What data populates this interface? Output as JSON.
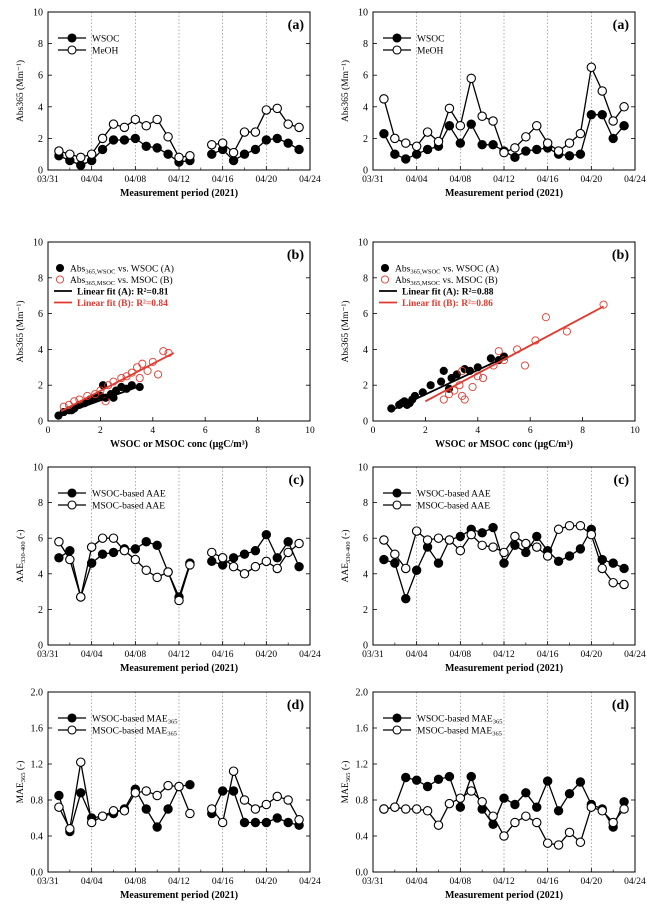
{
  "chart_data": [
    {
      "type": "line",
      "id": "a_left",
      "tag": "(a)",
      "ylabel": "Abs365",
      "ylabel_sub": "",
      "ylabel_unit": "(Mm⁻¹)",
      "xlabel": "Measurement period (2021)",
      "x_ticks": [
        "03/31",
        "04/04",
        "04/08",
        "04/12",
        "04/16",
        "04/20",
        "04/24"
      ],
      "ylim": [
        0,
        10
      ],
      "y_ticks": [
        "0",
        "2",
        "4",
        "6",
        "8",
        "10"
      ],
      "legend": [
        "WSOC",
        "MeOH"
      ],
      "series": [
        {
          "name": "WSOC",
          "marker": "filled",
          "x": [
            1,
            2,
            3,
            4,
            5,
            6,
            7,
            8,
            9,
            10,
            11,
            12,
            13,
            15,
            16,
            17,
            18,
            19,
            20,
            21,
            22,
            23
          ],
          "y": [
            0.9,
            0.6,
            0.3,
            0.6,
            1.3,
            1.9,
            1.9,
            2.0,
            1.5,
            1.4,
            1.0,
            0.5,
            0.6,
            1.0,
            1.3,
            0.6,
            1.0,
            1.3,
            1.9,
            2.0,
            1.7,
            1.3
          ]
        },
        {
          "name": "MeOH",
          "marker": "open",
          "x": [
            1,
            2,
            3,
            4,
            5,
            6,
            7,
            8,
            9,
            10,
            11,
            12,
            13,
            15,
            16,
            17,
            18,
            19,
            20,
            21,
            22,
            23
          ],
          "y": [
            1.2,
            1.0,
            0.8,
            1.0,
            2.0,
            2.9,
            2.7,
            3.2,
            2.8,
            3.2,
            2.1,
            0.8,
            0.9,
            1.6,
            1.7,
            1.1,
            2.4,
            2.4,
            3.8,
            3.9,
            2.9,
            2.7
          ]
        }
      ]
    },
    {
      "type": "line",
      "id": "a_right",
      "tag": "(a)",
      "ylabel": "Abs365",
      "ylabel_sub": "",
      "ylabel_unit": "(Mm⁻¹)",
      "xlabel": "Measurement period (2021)",
      "x_ticks": [
        "03/31",
        "04/04",
        "04/08",
        "04/12",
        "04/16",
        "04/20",
        "04/24"
      ],
      "ylim": [
        0,
        10
      ],
      "y_ticks": [
        "0",
        "2",
        "4",
        "6",
        "8",
        "10"
      ],
      "legend": [
        "WSOC",
        "MeOH"
      ],
      "series": [
        {
          "name": "WSOC",
          "marker": "filled",
          "x": [
            1,
            2,
            3,
            4,
            5,
            6,
            7,
            8,
            9,
            10,
            11,
            12,
            13,
            14,
            15,
            16,
            17,
            18,
            19,
            20,
            21,
            22,
            23
          ],
          "y": [
            2.3,
            1.0,
            0.7,
            1.0,
            1.3,
            1.5,
            2.8,
            1.7,
            2.9,
            1.6,
            1.6,
            1.2,
            0.8,
            1.2,
            1.3,
            1.4,
            1.0,
            0.9,
            1.0,
            3.5,
            3.5,
            2.0,
            2.8
          ]
        },
        {
          "name": "MeOH",
          "marker": "open",
          "x": [
            1,
            2,
            3,
            4,
            5,
            6,
            7,
            8,
            9,
            10,
            11,
            12,
            13,
            14,
            15,
            16,
            17,
            18,
            19,
            20,
            21,
            22,
            23
          ],
          "y": [
            4.5,
            2.0,
            1.7,
            1.5,
            2.4,
            1.8,
            3.9,
            2.8,
            5.8,
            3.4,
            3.1,
            1.1,
            1.4,
            2.1,
            2.8,
            1.7,
            1.2,
            1.7,
            2.3,
            6.5,
            5.0,
            3.1,
            4.0
          ]
        }
      ]
    },
    {
      "type": "scatter",
      "id": "b_left",
      "tag": "(b)",
      "ylabel": "Abs365",
      "ylabel_sub": "",
      "ylabel_unit": "(Mm⁻¹)",
      "xlabel": "WSOC or MSOC conc (μgC/m³)",
      "xlim": [
        0,
        10
      ],
      "x_ticks": [
        "0",
        "2",
        "4",
        "6",
        "8",
        "10"
      ],
      "ylim": [
        0,
        10
      ],
      "y_ticks": [
        "0",
        "2",
        "4",
        "6",
        "8",
        "10"
      ],
      "legend": [
        "Abs365,WSOC vs. WSOC (A)",
        "Abs365,MSOC vs. MSOC (B)",
        "Linear fit (A): R²=0.81",
        "Linear fit (B): R²=0.84"
      ],
      "series": [
        {
          "name": "Abs365,WSOC vs. WSOC (A)",
          "marker": "filled",
          "x": [
            0.4,
            0.6,
            0.8,
            1.0,
            1.2,
            1.4,
            1.6,
            1.8,
            2.0,
            2.2,
            2.4,
            2.6,
            2.8,
            3.0,
            3.2,
            3.5,
            0.9,
            1.7,
            2.1,
            2.5
          ],
          "y": [
            0.3,
            0.5,
            0.6,
            0.7,
            0.9,
            1.0,
            1.2,
            1.3,
            1.4,
            1.3,
            1.5,
            1.7,
            1.9,
            1.8,
            2.0,
            1.9,
            0.6,
            1.2,
            2.0,
            1.3
          ]
        },
        {
          "name": "Abs365,MSOC vs. MSOC (B)",
          "marker": "open-red",
          "x": [
            0.6,
            0.8,
            1.0,
            1.2,
            1.5,
            1.8,
            2.0,
            2.3,
            2.5,
            2.8,
            3.0,
            3.2,
            3.4,
            3.6,
            3.8,
            4.0,
            4.2,
            4.4,
            4.6,
            3.5,
            2.2
          ],
          "y": [
            0.8,
            0.9,
            1.1,
            1.2,
            1.4,
            1.5,
            1.7,
            2.0,
            2.2,
            2.4,
            2.5,
            2.7,
            3.0,
            3.2,
            2.8,
            3.3,
            2.6,
            3.9,
            3.8,
            2.4,
            1.1
          ]
        }
      ],
      "fits": [
        {
          "name": "Linear fit (A)",
          "color": "#000000",
          "x": [
            0.3,
            3.6
          ],
          "y": [
            0.25,
            2.0
          ]
        },
        {
          "name": "Linear fit (B)",
          "color": "#e03a2f",
          "x": [
            0.5,
            4.8
          ],
          "y": [
            0.55,
            3.8
          ]
        }
      ]
    },
    {
      "type": "scatter",
      "id": "b_right",
      "tag": "(b)",
      "ylabel": "Abs365",
      "ylabel_sub": "",
      "ylabel_unit": "(Mm⁻¹)",
      "xlabel": "WSOC or MSOC conc (μgC/m³)",
      "xlim": [
        0,
        10
      ],
      "x_ticks": [
        "0",
        "2",
        "4",
        "6",
        "8",
        "10"
      ],
      "ylim": [
        0,
        10
      ],
      "y_ticks": [
        "0",
        "2",
        "4",
        "6",
        "8",
        "10"
      ],
      "legend": [
        "Abs365,WSOC vs. WSOC (A)",
        "Abs365,MSOC vs. MSOC (B)",
        "Linear fit (A): R²=0.88",
        "Linear fit (B): R²=0.86"
      ],
      "series": [
        {
          "name": "Abs365,WSOC vs. WSOC (A)",
          "marker": "filled",
          "x": [
            0.7,
            1.0,
            1.1,
            1.2,
            1.3,
            1.5,
            1.6,
            1.9,
            2.2,
            2.6,
            2.9,
            3.0,
            3.2,
            3.5,
            3.7,
            4.0,
            4.5,
            4.8,
            5.0,
            1.4,
            2.7
          ],
          "y": [
            0.7,
            0.9,
            1.0,
            1.1,
            0.9,
            1.2,
            1.4,
            1.6,
            2.0,
            2.2,
            1.8,
            2.4,
            2.6,
            2.9,
            2.8,
            3.0,
            3.5,
            3.4,
            3.6,
            1.0,
            2.8
          ]
        },
        {
          "name": "Abs365,MSOC vs. MSOC (B)",
          "marker": "open-red",
          "x": [
            2.7,
            2.9,
            3.1,
            3.3,
            3.4,
            3.5,
            3.8,
            4.0,
            4.2,
            4.6,
            5.0,
            5.5,
            5.8,
            6.2,
            6.6,
            7.4,
            8.8,
            3.4,
            4.8
          ],
          "y": [
            1.2,
            1.5,
            1.7,
            2.0,
            1.4,
            1.2,
            1.9,
            2.5,
            2.4,
            3.1,
            3.4,
            4.0,
            3.1,
            4.5,
            5.8,
            5.0,
            6.5,
            2.8,
            3.9
          ]
        }
      ],
      "fits": [
        {
          "name": "Linear fit (A)",
          "color": "#000000",
          "x": [
            0.7,
            5.1
          ],
          "y": [
            0.6,
            3.6
          ]
        },
        {
          "name": "Linear fit (B)",
          "color": "#e03a2f",
          "x": [
            2.0,
            8.8
          ],
          "y": [
            1.1,
            6.4
          ]
        }
      ]
    },
    {
      "type": "line",
      "id": "c_left",
      "tag": "(c)",
      "ylabel": "AAE",
      "ylabel_sub": "330-400",
      "ylabel_unit": "(-)",
      "xlabel": "Measurement period (2021)",
      "x_ticks": [
        "03/31",
        "04/04",
        "04/08",
        "04/12",
        "04/16",
        "04/20",
        "04/24"
      ],
      "ylim": [
        0,
        10
      ],
      "y_ticks": [
        "0",
        "2",
        "4",
        "6",
        "8",
        "10"
      ],
      "legend": [
        "WSOC-based AAE",
        "MSOC-based AAE"
      ],
      "series": [
        {
          "name": "WSOC-based AAE",
          "marker": "filled",
          "x": [
            1,
            2,
            3,
            4,
            5,
            6,
            7,
            8,
            9,
            10,
            11,
            12,
            13,
            15,
            16,
            17,
            18,
            19,
            20,
            21,
            22,
            23
          ],
          "y": [
            4.9,
            5.3,
            2.7,
            4.6,
            5.1,
            5.2,
            5.4,
            5.4,
            5.8,
            5.6,
            4.1,
            2.7,
            4.6,
            4.7,
            4.5,
            4.9,
            5.1,
            5.3,
            6.2,
            4.9,
            5.8,
            4.4
          ]
        },
        {
          "name": "MSOC-based AAE",
          "marker": "open",
          "x": [
            1,
            2,
            3,
            4,
            5,
            6,
            7,
            8,
            9,
            10,
            11,
            12,
            13,
            15,
            16,
            17,
            18,
            19,
            20,
            21,
            22,
            23
          ],
          "y": [
            5.8,
            4.8,
            2.7,
            5.5,
            6.0,
            6.0,
            5.3,
            4.8,
            4.2,
            3.8,
            4.1,
            2.5,
            4.5,
            5.2,
            4.9,
            4.4,
            4.0,
            4.4,
            4.7,
            4.3,
            5.2,
            5.7
          ]
        }
      ]
    },
    {
      "type": "line",
      "id": "c_right",
      "tag": "(c)",
      "ylabel": "AAE",
      "ylabel_sub": "330-400",
      "ylabel_unit": "(-)",
      "xlabel": "Measurement period (2021)",
      "x_ticks": [
        "03/31",
        "04/04",
        "04/08",
        "04/12",
        "04/16",
        "04/20",
        "04/24"
      ],
      "ylim": [
        0,
        10
      ],
      "y_ticks": [
        "0",
        "2",
        "4",
        "6",
        "8",
        "10"
      ],
      "legend": [
        "WSOC-based AAE",
        "MSOC-based AAE"
      ],
      "series": [
        {
          "name": "WSOC-based AAE",
          "marker": "filled",
          "x": [
            1,
            2,
            3,
            4,
            5,
            6,
            7,
            8,
            9,
            10,
            11,
            12,
            13,
            14,
            15,
            16,
            17,
            18,
            19,
            20,
            21,
            22,
            23
          ],
          "y": [
            4.8,
            4.6,
            2.6,
            4.2,
            5.5,
            4.6,
            5.9,
            6.1,
            6.5,
            6.3,
            6.6,
            4.6,
            5.6,
            5.2,
            6.1,
            5.3,
            4.7,
            5.0,
            5.4,
            6.5,
            4.8,
            4.6,
            4.3
          ]
        },
        {
          "name": "MSOC-based AAE",
          "marker": "open",
          "x": [
            1,
            2,
            3,
            4,
            5,
            6,
            7,
            8,
            9,
            10,
            11,
            12,
            13,
            14,
            15,
            16,
            17,
            18,
            19,
            20,
            21,
            22,
            23
          ],
          "y": [
            5.9,
            5.1,
            4.3,
            6.4,
            5.9,
            6.0,
            5.9,
            5.3,
            6.2,
            5.6,
            5.5,
            5.2,
            6.1,
            5.7,
            5.5,
            5.0,
            6.5,
            6.7,
            6.7,
            6.2,
            4.3,
            3.5,
            3.4
          ]
        }
      ]
    },
    {
      "type": "line",
      "id": "d_left",
      "tag": "(d)",
      "ylabel": "MAE",
      "ylabel_sub": "365",
      "ylabel_unit": "(-)",
      "xlabel": "Measurement period (2021)",
      "x_ticks": [
        "03/31",
        "04/04",
        "04/08",
        "04/12",
        "04/16",
        "04/20",
        "04/24"
      ],
      "ylim": [
        0,
        2.0
      ],
      "y_ticks": [
        "0.0",
        "0.4",
        "0.8",
        "1.2",
        "1.6",
        "2.0"
      ],
      "legend": [
        "WSOC-based MAE365",
        "MSOC-based MAE365"
      ],
      "series": [
        {
          "name": "WSOC-based MAE365",
          "marker": "filled",
          "x": [
            1,
            2,
            3,
            4,
            5,
            6,
            7,
            8,
            9,
            10,
            11,
            12,
            13,
            15,
            16,
            17,
            18,
            19,
            20,
            21,
            22,
            23
          ],
          "y": [
            0.85,
            0.45,
            0.88,
            0.6,
            0.62,
            0.65,
            0.7,
            0.92,
            0.7,
            0.5,
            0.7,
            0.95,
            0.97,
            0.65,
            0.9,
            0.9,
            0.55,
            0.55,
            0.55,
            0.6,
            0.55,
            0.52
          ]
        },
        {
          "name": "MSOC-based MAE365",
          "marker": "open",
          "x": [
            1,
            2,
            3,
            4,
            5,
            6,
            7,
            8,
            9,
            10,
            11,
            12,
            13,
            15,
            16,
            17,
            18,
            19,
            20,
            21,
            22,
            23
          ],
          "y": [
            0.72,
            0.48,
            1.22,
            0.55,
            0.62,
            0.68,
            0.68,
            0.88,
            0.9,
            0.85,
            0.96,
            0.95,
            0.65,
            0.7,
            0.55,
            1.12,
            0.8,
            0.7,
            0.75,
            0.84,
            0.8,
            0.58
          ]
        }
      ]
    },
    {
      "type": "line",
      "id": "d_right",
      "tag": "(d)",
      "ylabel": "MAE",
      "ylabel_sub": "365",
      "ylabel_unit": "(-)",
      "xlabel": "Measurement period (2021)",
      "x_ticks": [
        "03/31",
        "04/04",
        "04/08",
        "04/12",
        "04/16",
        "04/20",
        "04/24"
      ],
      "ylim": [
        0,
        2.0
      ],
      "y_ticks": [
        "0.0",
        "0.4",
        "0.8",
        "1.2",
        "1.6",
        "2.0"
      ],
      "legend": [
        "WSOC-based MAE365",
        "MSOC-based MAE365"
      ],
      "series": [
        {
          "name": "WSOC-based MAE365",
          "marker": "filled",
          "x": [
            1,
            2,
            3,
            4,
            5,
            6,
            7,
            8,
            9,
            10,
            11,
            12,
            13,
            14,
            15,
            16,
            17,
            18,
            19,
            20,
            21,
            22,
            23
          ],
          "y": [
            0.7,
            0.72,
            1.05,
            1.02,
            0.95,
            1.03,
            1.06,
            0.72,
            1.06,
            0.7,
            0.53,
            0.82,
            0.75,
            0.88,
            0.72,
            1.01,
            0.68,
            0.87,
            1.0,
            0.75,
            0.7,
            0.5,
            0.78
          ]
        },
        {
          "name": "MSOC-based MAE365",
          "marker": "open",
          "x": [
            1,
            2,
            3,
            4,
            5,
            6,
            7,
            8,
            9,
            10,
            11,
            12,
            13,
            14,
            15,
            16,
            17,
            18,
            19,
            20,
            21,
            22,
            23
          ],
          "y": [
            0.7,
            0.72,
            0.7,
            0.7,
            0.68,
            0.52,
            0.76,
            0.82,
            0.9,
            0.78,
            0.62,
            0.4,
            0.55,
            0.62,
            0.55,
            0.32,
            0.3,
            0.44,
            0.33,
            0.72,
            0.68,
            0.55,
            0.7
          ]
        }
      ]
    }
  ]
}
